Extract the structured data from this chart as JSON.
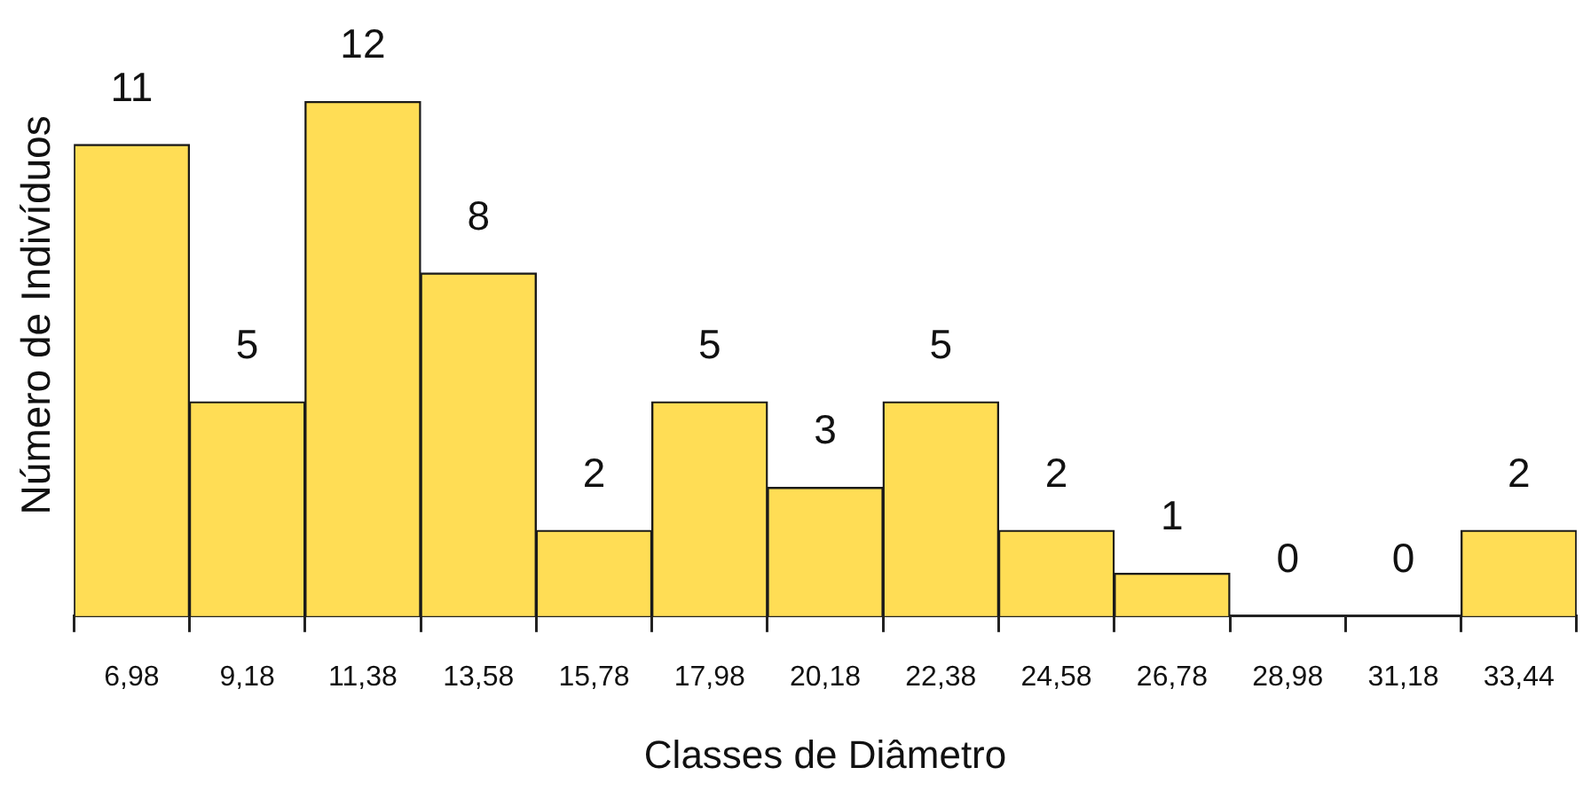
{
  "chart_data": {
    "type": "bar",
    "xlabel": "Classes de Diâmetro",
    "ylabel": "Número de Indivíduos",
    "categories": [
      "6,98",
      "9,18",
      "11,38",
      "13,58",
      "15,78",
      "17,98",
      "20,18",
      "22,38",
      "24,58",
      "26,78",
      "28,98",
      "31,18",
      "33,44"
    ],
    "values": [
      11,
      5,
      12,
      8,
      2,
      5,
      3,
      5,
      2,
      1,
      0,
      0,
      2
    ],
    "color": "#ffdd55",
    "data_labels": true
  }
}
